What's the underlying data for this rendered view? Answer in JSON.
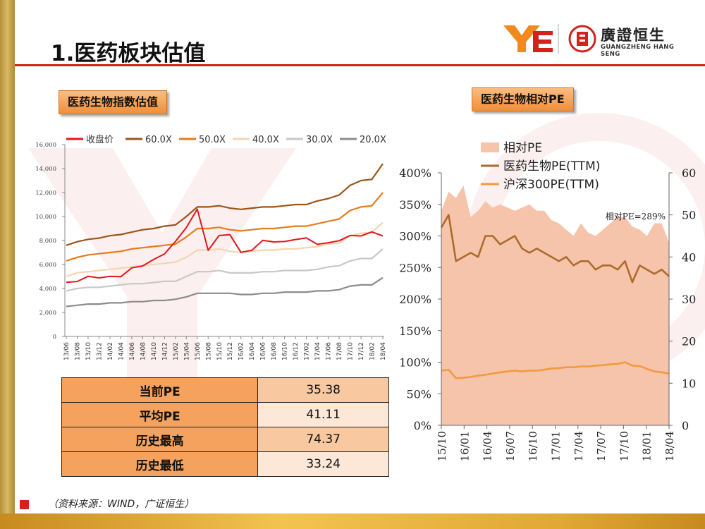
{
  "page": {
    "title": "1.医药板块估值",
    "logo": {
      "name_cn": "廣證恒生",
      "name_en": "GUANGZHENG HANG SENG"
    },
    "source": "（资料来源：WIND，广证恒生）",
    "colors": {
      "accent_red": "#d3221c",
      "badge_orange": "#f5a04c",
      "gold": "#d9b865"
    }
  },
  "left_panel": {
    "badge": "医药生物指数估值"
  },
  "right_panel": {
    "badge": "医药生物相对PE"
  },
  "pe_table": {
    "rows": [
      {
        "label": "当前PE",
        "value": "35.38"
      },
      {
        "label": "平均PE",
        "value": "41.11"
      },
      {
        "label": "历史最高",
        "value": "74.37"
      },
      {
        "label": "历史最低",
        "value": "33.24"
      }
    ]
  },
  "chart_data": [
    {
      "type": "line",
      "title": "",
      "xlabel": "",
      "ylabel": "",
      "ylim": [
        0,
        16000
      ],
      "yticks": [
        "0",
        "2,000",
        "4,000",
        "6,000",
        "8,000",
        "10,000",
        "12,000",
        "14,000",
        "16,000"
      ],
      "x_ticks": [
        "13/06",
        "13/08",
        "13/10",
        "13/12",
        "14/02",
        "14/04",
        "14/06",
        "14/08",
        "14/10",
        "14/12",
        "15/02",
        "15/04",
        "15/06",
        "15/08",
        "15/10",
        "15/12",
        "16/02",
        "16/04",
        "16/06",
        "16/08",
        "16/10",
        "16/12",
        "17/02",
        "17/04",
        "17/06",
        "17/08",
        "17/10",
        "17/12",
        "18/02",
        "18/04"
      ],
      "legend_position": "top",
      "grid": false,
      "series": [
        {
          "name": "收盘价",
          "color": "#e8141b",
          "values": [
            4400,
            4700,
            4900,
            5000,
            4900,
            5100,
            5600,
            6000,
            6300,
            7000,
            7800,
            9200,
            10500,
            7300,
            8300,
            8600,
            6900,
            7300,
            7900,
            8000,
            7800,
            8200,
            8100,
            7800,
            7700,
            8100,
            8300,
            8500,
            8600,
            8500
          ]
        },
        {
          "name": "60.0X",
          "color": "#9c5518",
          "values": [
            7600,
            7900,
            8100,
            8200,
            8400,
            8500,
            8700,
            8900,
            9000,
            9200,
            9300,
            10000,
            10800,
            10800,
            10900,
            10700,
            10600,
            10700,
            10800,
            10800,
            10900,
            11000,
            11000,
            11300,
            11500,
            11800,
            12600,
            13000,
            13100,
            14400
          ]
        },
        {
          "name": "50.0X",
          "color": "#e77b1b",
          "values": [
            6300,
            6600,
            6800,
            6900,
            7000,
            7100,
            7300,
            7400,
            7500,
            7600,
            7700,
            8300,
            9000,
            9000,
            9100,
            8900,
            8800,
            8900,
            9000,
            9000,
            9100,
            9200,
            9200,
            9400,
            9600,
            9800,
            10500,
            10800,
            10900,
            12000
          ]
        },
        {
          "name": "40.0X",
          "color": "#f5d5b0",
          "values": [
            5000,
            5300,
            5400,
            5500,
            5600,
            5700,
            5800,
            5900,
            6000,
            6100,
            6200,
            6600,
            7200,
            7200,
            7300,
            7100,
            7000,
            7100,
            7200,
            7200,
            7300,
            7300,
            7400,
            7500,
            7700,
            7800,
            8400,
            8600,
            8700,
            9500
          ]
        },
        {
          "name": "30.0X",
          "color": "#c8c8c8",
          "values": [
            3800,
            4000,
            4100,
            4100,
            4200,
            4300,
            4400,
            4400,
            4500,
            4600,
            4600,
            5000,
            5400,
            5400,
            5500,
            5300,
            5300,
            5300,
            5400,
            5400,
            5500,
            5500,
            5500,
            5600,
            5800,
            5900,
            6300,
            6500,
            6500,
            7300
          ]
        },
        {
          "name": "20.0X",
          "color": "#8c8c8c",
          "values": [
            2500,
            2600,
            2700,
            2700,
            2800,
            2800,
            2900,
            2900,
            3000,
            3000,
            3100,
            3300,
            3600,
            3600,
            3600,
            3600,
            3500,
            3500,
            3600,
            3600,
            3700,
            3700,
            3700,
            3800,
            3800,
            3900,
            4200,
            4300,
            4300,
            4900
          ]
        }
      ]
    },
    {
      "type": "area",
      "title": "",
      "xlabel": "",
      "ylabel": "",
      "x_ticks": [
        "15/10",
        "16/01",
        "16/04",
        "16/07",
        "16/10",
        "17/01",
        "17/04",
        "17/07",
        "17/10",
        "18/01",
        "18/04"
      ],
      "y_left": {
        "ylim": [
          0,
          400
        ],
        "ticks": [
          "0%",
          "50%",
          "100%",
          "150%",
          "200%",
          "250%",
          "300%",
          "350%",
          "400%"
        ]
      },
      "y_right": {
        "ylim": [
          0,
          60
        ],
        "ticks": [
          "0",
          "10",
          "20",
          "30",
          "40",
          "50",
          "60"
        ]
      },
      "legend_position": "top-left",
      "annotation": "相对PE=289%",
      "series": [
        {
          "name": "相对PE",
          "axis": "left",
          "color": "#f5c4ab",
          "values": [
            340,
            370,
            360,
            380,
            330,
            340,
            355,
            345,
            350,
            345,
            340,
            345,
            350,
            340,
            340,
            325,
            320,
            310,
            300,
            320,
            305,
            300,
            310,
            320,
            330,
            330,
            315,
            310,
            300,
            320,
            320,
            289
          ]
        },
        {
          "name": "医药生物PE(TTM)",
          "axis": "right",
          "color": "#ad6b2a",
          "values": [
            47,
            50,
            39,
            40,
            41,
            40,
            45,
            45,
            43,
            44,
            45,
            42,
            41,
            42,
            41,
            40,
            39,
            40,
            38,
            39,
            39,
            37,
            38,
            38,
            37,
            39,
            34,
            38,
            37,
            36,
            37,
            35.4
          ]
        },
        {
          "name": "沪深300PE(TTM)",
          "axis": "right",
          "color": "#f29a3d",
          "values": [
            13,
            13.2,
            11.2,
            11.3,
            11.5,
            11.8,
            12,
            12.3,
            12.6,
            12.8,
            13,
            12.8,
            13,
            13,
            13.2,
            13.5,
            13.6,
            13.8,
            13.8,
            14,
            14,
            14.2,
            14.3,
            14.5,
            14.6,
            15,
            14.2,
            14.1,
            13.4,
            12.8,
            12.6,
            12.3
          ]
        }
      ]
    }
  ]
}
